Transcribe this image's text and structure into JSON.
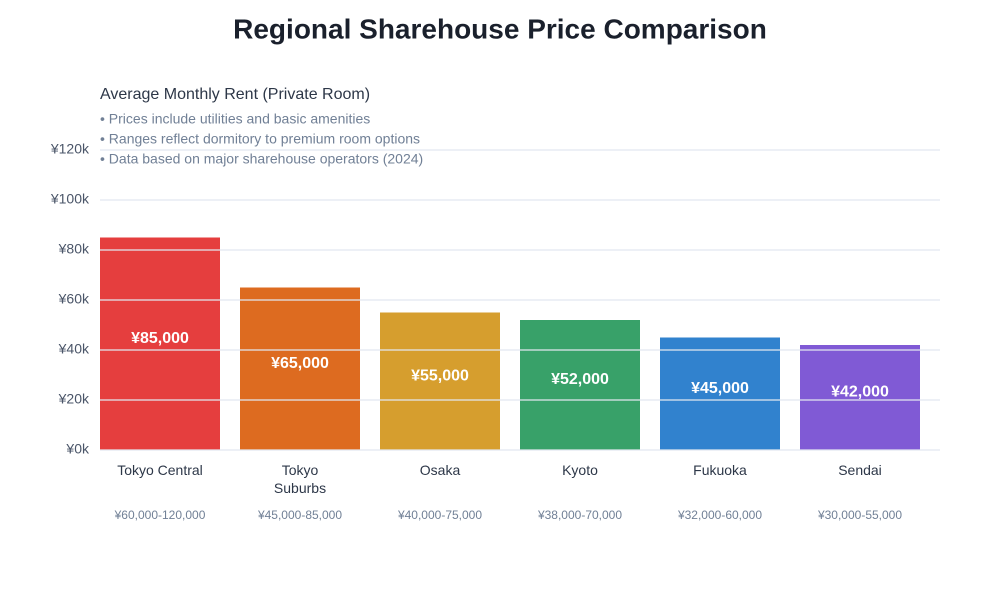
{
  "chart_data": {
    "type": "bar",
    "title": "Regional Sharehouse Price Comparison",
    "subtitle": "Average Monthly Rent (Private Room)",
    "notes": [
      "• Prices include utilities and basic amenities",
      "• Ranges reflect dormitory to premium room options",
      "• Data based on major sharehouse operators (2024)"
    ],
    "categories": [
      "Tokyo Central",
      "Tokyo Suburbs",
      "Osaka",
      "Kyoto",
      "Fukuoka",
      "Sendai"
    ],
    "values": [
      85000,
      65000,
      55000,
      52000,
      45000,
      42000
    ],
    "value_labels": [
      "¥85,000",
      "¥65,000",
      "¥55,000",
      "¥52,000",
      "¥45,000",
      "¥42,000"
    ],
    "ranges": [
      "¥60,000-120,000",
      "¥45,000-85,000",
      "¥40,000-75,000",
      "¥38,000-70,000",
      "¥32,000-60,000",
      "¥30,000-55,000"
    ],
    "colors": [
      "#e53e3e",
      "#dd6b20",
      "#d69e2e",
      "#38a169",
      "#3182ce",
      "#805ad5"
    ],
    "ylim": [
      0,
      120000
    ],
    "yticks": [
      {
        "value": 0,
        "label": "¥0k"
      },
      {
        "value": 20000,
        "label": "¥20k"
      },
      {
        "value": 40000,
        "label": "¥40k"
      },
      {
        "value": 60000,
        "label": "¥60k"
      },
      {
        "value": 80000,
        "label": "¥80k"
      },
      {
        "value": 100000,
        "label": "¥100k"
      },
      {
        "value": 120000,
        "label": "¥120k"
      }
    ],
    "grid": true
  }
}
